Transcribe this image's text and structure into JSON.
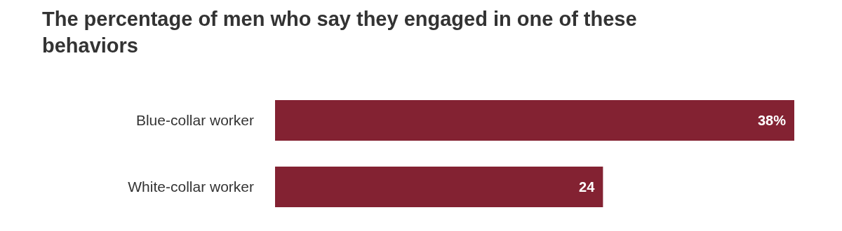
{
  "chart_data": {
    "type": "bar",
    "orientation": "horizontal",
    "title": "The percentage of men who say they engaged in one of these behaviors",
    "categories": [
      "Blue-collar worker",
      "White-collar worker"
    ],
    "values": [
      38,
      24
    ],
    "color": "#832232",
    "value_labels": [
      "38%",
      "24"
    ]
  }
}
